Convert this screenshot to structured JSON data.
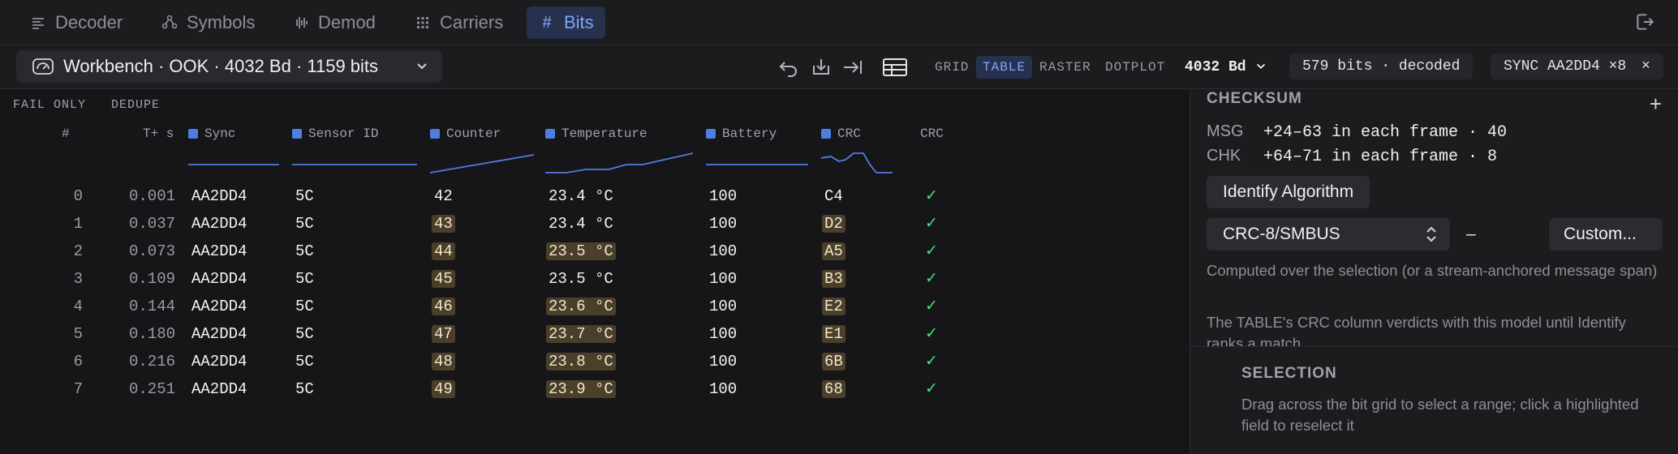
{
  "nav": {
    "tabs": [
      {
        "label": "Decoder",
        "icon": "list-icon"
      },
      {
        "label": "Symbols",
        "icon": "nodes-icon"
      },
      {
        "label": "Demod",
        "icon": "waveform-icon"
      },
      {
        "label": "Carriers",
        "icon": "grid-icon"
      },
      {
        "label": "Bits",
        "icon": "hash-icon",
        "active": true
      }
    ],
    "tab_hash": "#"
  },
  "toolbar": {
    "workbench_label": "Workbench · OOK · 4032 Bd · 1159 bits",
    "modes": [
      "GRID",
      "TABLE",
      "RASTER",
      "DOTPLOT"
    ],
    "active_mode": "TABLE",
    "baud": "4032 Bd",
    "status": "579 bits · decoded",
    "sync": "SYNC AA2DD4 ×8",
    "sync_close": "×"
  },
  "filters": {
    "fail_only": "FAIL ONLY",
    "dedupe": "DEDUPE"
  },
  "table": {
    "headers": {
      "index": "#",
      "time": "T+ s",
      "sync": "Sync",
      "sensor": "Sensor ID",
      "counter": "Counter",
      "temperature": "Temperature",
      "battery": "Battery",
      "crc": "CRC",
      "crc_verdict": "CRC"
    },
    "rows": [
      {
        "i": "0",
        "t": "0.001",
        "sync": "AA2DD4",
        "sensor": "5C",
        "counter": "42",
        "temp": "23.4 °C",
        "battery": "100",
        "crc": "C4",
        "ok": "✓",
        "hl_counter": false,
        "hl_temp": false,
        "hl_crc": false
      },
      {
        "i": "1",
        "t": "0.037",
        "sync": "AA2DD4",
        "sensor": "5C",
        "counter": "43",
        "temp": "23.4 °C",
        "battery": "100",
        "crc": "D2",
        "ok": "✓",
        "hl_counter": true,
        "hl_temp": false,
        "hl_crc": true
      },
      {
        "i": "2",
        "t": "0.073",
        "sync": "AA2DD4",
        "sensor": "5C",
        "counter": "44",
        "temp": "23.5 °C",
        "battery": "100",
        "crc": "A5",
        "ok": "✓",
        "hl_counter": true,
        "hl_temp": true,
        "hl_crc": true
      },
      {
        "i": "3",
        "t": "0.109",
        "sync": "AA2DD4",
        "sensor": "5C",
        "counter": "45",
        "temp": "23.5 °C",
        "battery": "100",
        "crc": "B3",
        "ok": "✓",
        "hl_counter": true,
        "hl_temp": false,
        "hl_crc": true
      },
      {
        "i": "4",
        "t": "0.144",
        "sync": "AA2DD4",
        "sensor": "5C",
        "counter": "46",
        "temp": "23.6 °C",
        "battery": "100",
        "crc": "E2",
        "ok": "✓",
        "hl_counter": true,
        "hl_temp": true,
        "hl_crc": true
      },
      {
        "i": "5",
        "t": "0.180",
        "sync": "AA2DD4",
        "sensor": "5C",
        "counter": "47",
        "temp": "23.7 °C",
        "battery": "100",
        "crc": "E1",
        "ok": "✓",
        "hl_counter": true,
        "hl_temp": true,
        "hl_crc": true
      },
      {
        "i": "6",
        "t": "0.216",
        "sync": "AA2DD4",
        "sensor": "5C",
        "counter": "48",
        "temp": "23.8 °C",
        "battery": "100",
        "crc": "6B",
        "ok": "✓",
        "hl_counter": true,
        "hl_temp": true,
        "hl_crc": true
      },
      {
        "i": "7",
        "t": "0.251",
        "sync": "AA2DD4",
        "sensor": "5C",
        "counter": "49",
        "temp": "23.9 °C",
        "battery": "100",
        "crc": "68",
        "ok": "✓",
        "hl_counter": true,
        "hl_temp": true,
        "hl_crc": true
      }
    ]
  },
  "checksum": {
    "title": "CHECKSUM",
    "add": "+",
    "msg_label": "MSG",
    "msg_value": "+24–63 in each frame · 40",
    "chk_label": "CHK",
    "chk_value": "+64–71 in each frame · 8",
    "identify_button": "Identify Algorithm",
    "algorithm": "CRC-8/SMBUS",
    "dash": "–",
    "custom_button": "Custom...",
    "note1": "Computed over the selection (or a stream-anchored message span)",
    "note2": "The TABLE's CRC column verdicts with this model until Identify ranks a match."
  },
  "selection": {
    "title": "SELECTION",
    "hint": "Drag across the bit grid to select a range; click a highlighted field to reselect it"
  },
  "colors": {
    "accent": "#7ea6ff",
    "field_marker": "#4f7de0",
    "highlight": "#4a3f2a",
    "ok": "#4ade80"
  }
}
